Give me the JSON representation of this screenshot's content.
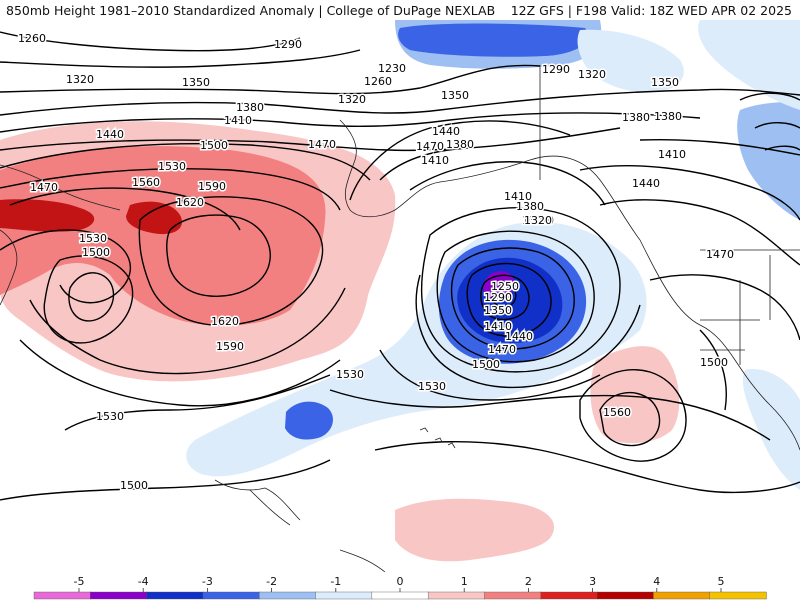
{
  "header": {
    "left_title": "850mb Height 1981–2010 Standardized Anomaly | College of DuPage NEXLAB",
    "right_title": "12Z GFS | F198 Valid: 18Z WED APR 02 2025"
  },
  "contour_labels": [
    "1260",
    "1290",
    "1230",
    "1260",
    "1290",
    "1320",
    "1350",
    "1320",
    "1350",
    "1380",
    "1410",
    "1440",
    "1470",
    "1500",
    "1530",
    "1560",
    "1590",
    "1620",
    "1620",
    "1590",
    "1470",
    "1530",
    "1500",
    "1530",
    "1500",
    "1440",
    "1470",
    "1410",
    "1380",
    "1410",
    "1380",
    "1350",
    "1320",
    "1320",
    "1290",
    "1250",
    "1350",
    "1410",
    "1440",
    "1470",
    "1500",
    "1530",
    "1530",
    "1560",
    "1500",
    "1470",
    "1410",
    "1440",
    "1380",
    "1380",
    "1350",
    "1320"
  ],
  "legend": {
    "ticks": [
      "-5",
      "-4",
      "-3",
      "-2",
      "-1",
      "0",
      "1",
      "2",
      "3",
      "4",
      "5"
    ],
    "colors": [
      "#e86ad8",
      "#8a00c8",
      "#1030c8",
      "#3a63e6",
      "#9dbff2",
      "#dcecfb",
      "#ffffff",
      "#f9c6c6",
      "#f28080",
      "#dd2020",
      "#b50000",
      "#f0a000",
      "#f5c200"
    ]
  }
}
